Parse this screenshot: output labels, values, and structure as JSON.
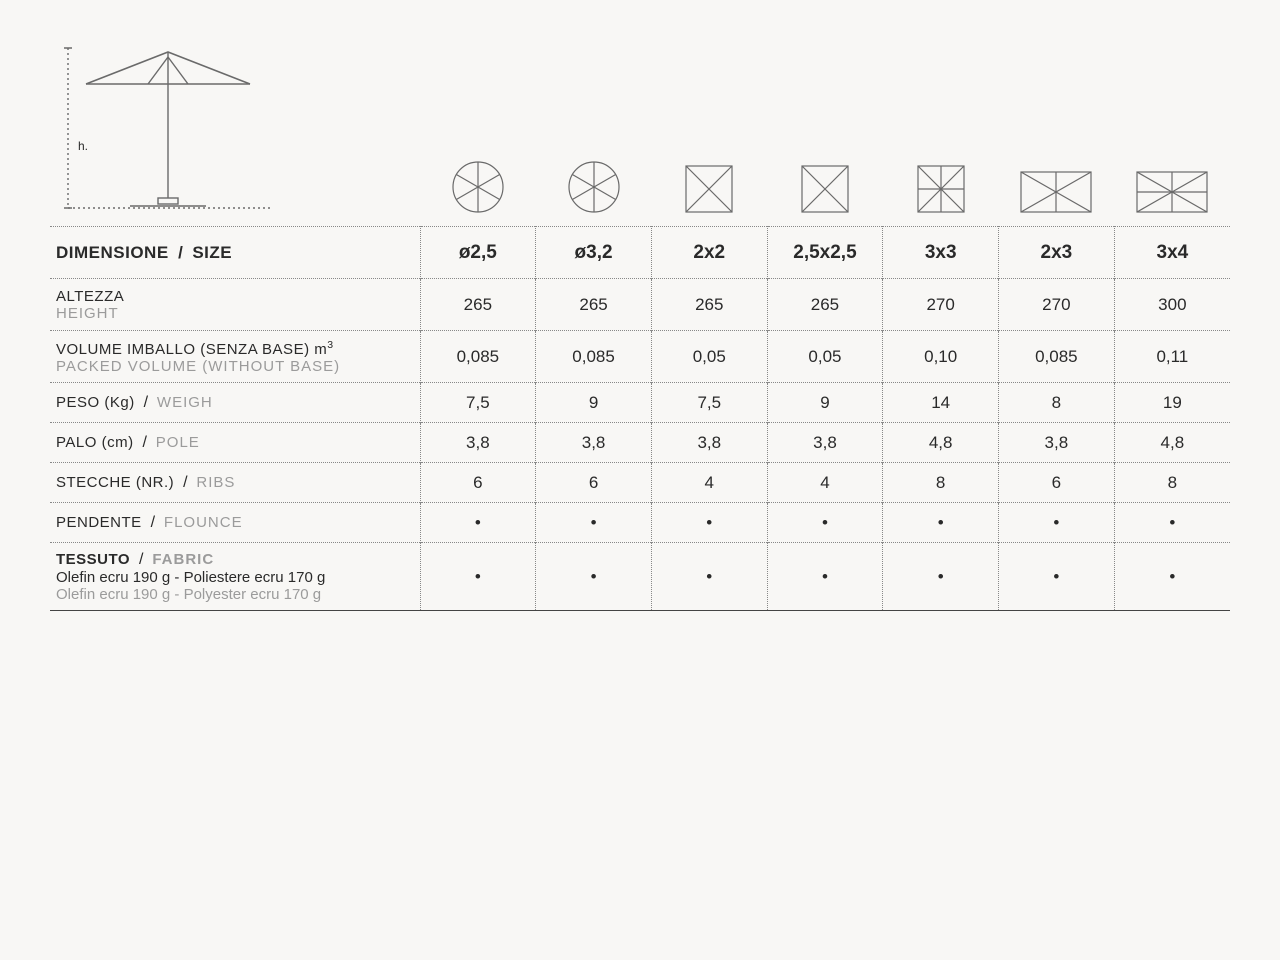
{
  "diagram": {
    "h_label": "h."
  },
  "icons": [
    {
      "type": "circle6"
    },
    {
      "type": "circle6"
    },
    {
      "type": "square4"
    },
    {
      "type": "square4"
    },
    {
      "type": "square8"
    },
    {
      "type": "rect6"
    },
    {
      "type": "rect8"
    }
  ],
  "columns": [
    "ø2,5",
    "ø3,2",
    "2x2",
    "2,5x2,5",
    "3x3",
    "2x3",
    "3x4"
  ],
  "rows": {
    "size": {
      "it": "DIMENSIONE",
      "en": "SIZE"
    },
    "height": {
      "it": "ALTEZZA",
      "en": "HEIGHT",
      "values": [
        "265",
        "265",
        "265",
        "265",
        "270",
        "270",
        "300"
      ]
    },
    "volume": {
      "it": "VOLUME IMBALLO (SENZA BASE) m",
      "sup": "3",
      "en": "PACKED VOLUME (WITHOUT BASE)",
      "values": [
        "0,085",
        "0,085",
        "0,05",
        "0,05",
        "0,10",
        "0,085",
        "0,11"
      ]
    },
    "weight": {
      "it": "PESO (Kg)",
      "en": "WEIGH",
      "values": [
        "7,5",
        "9",
        "7,5",
        "9",
        "14",
        "8",
        "19"
      ]
    },
    "pole": {
      "it": "PALO (cm)",
      "en": "POLE",
      "values": [
        "3,8",
        "3,8",
        "3,8",
        "3,8",
        "4,8",
        "3,8",
        "4,8"
      ]
    },
    "ribs": {
      "it": "STECCHE (NR.)",
      "en": "RIBS",
      "values": [
        "6",
        "6",
        "4",
        "4",
        "8",
        "6",
        "8"
      ]
    },
    "flounce": {
      "it": "PENDENTE",
      "en": "FLOUNCE",
      "values": [
        "•",
        "•",
        "•",
        "•",
        "•",
        "•",
        "•"
      ]
    },
    "fabric": {
      "it": "TESSUTO",
      "en": "FABRIC",
      "sub_it": "Olefin ecru 190 g - Poliestere ecru 170 g",
      "sub_en": "Olefin ecru 190 g - Polyester ecru 170 g",
      "values": [
        "•",
        "•",
        "•",
        "•",
        "•",
        "•",
        "•"
      ]
    }
  },
  "style": {
    "stroke": "#6a6a6a",
    "stroke_width": 1.2
  }
}
